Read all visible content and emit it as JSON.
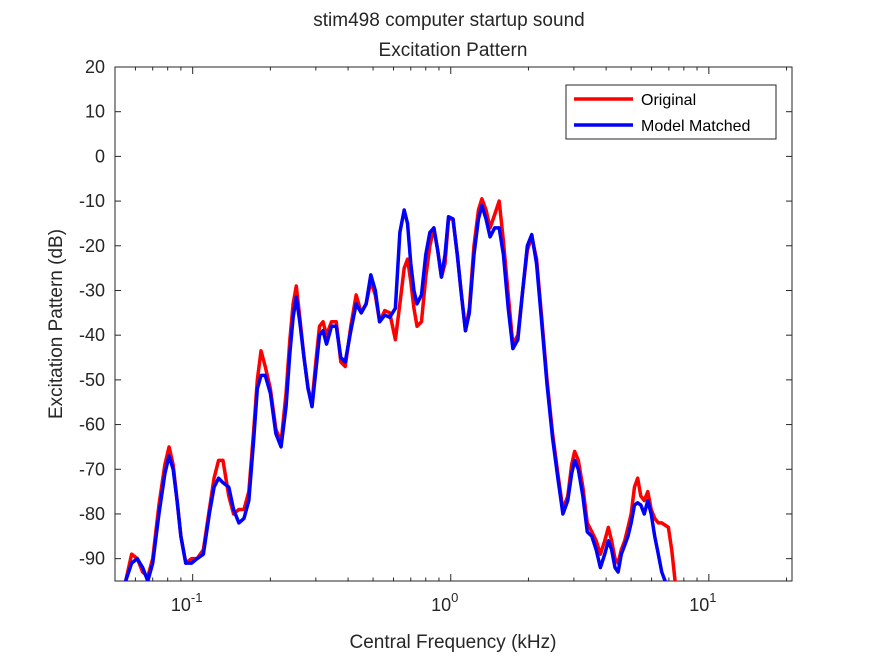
{
  "chart_data": {
    "type": "line",
    "title": "stim498 computer startup sound",
    "subtitle": "Excitation Pattern",
    "xlabel": "Central Frequency (kHz)",
    "ylabel": "Excitation Pattern (dB)",
    "xscale": "log",
    "xlim": [
      0.05,
      21
    ],
    "ylim": [
      -95,
      20
    ],
    "x_ticks": [
      {
        "value": 0.1,
        "base": "10",
        "exp": "-1"
      },
      {
        "value": 1,
        "base": "10",
        "exp": "0"
      },
      {
        "value": 10,
        "base": "10",
        "exp": "1"
      }
    ],
    "y_ticks": [
      {
        "value": 20,
        "label": "20"
      },
      {
        "value": 10,
        "label": "10"
      },
      {
        "value": 0,
        "label": "0"
      },
      {
        "value": -10,
        "label": "-10"
      },
      {
        "value": -20,
        "label": "-20"
      },
      {
        "value": -30,
        "label": "-30"
      },
      {
        "value": -40,
        "label": "-40"
      },
      {
        "value": -50,
        "label": "-50"
      },
      {
        "value": -60,
        "label": "-60"
      },
      {
        "value": -70,
        "label": "-70"
      },
      {
        "value": -80,
        "label": "-80"
      },
      {
        "value": -90,
        "label": "-90"
      }
    ],
    "legend": {
      "location": "top-right"
    },
    "series": [
      {
        "name": "Original",
        "color": "#ff0000",
        "points": [
          [
            0.055,
            -95
          ],
          [
            0.058,
            -89
          ],
          [
            0.061,
            -90
          ],
          [
            0.064,
            -93
          ],
          [
            0.067,
            -94
          ],
          [
            0.07,
            -90
          ],
          [
            0.074,
            -78
          ],
          [
            0.078,
            -69
          ],
          [
            0.081,
            -65
          ],
          [
            0.084,
            -69
          ],
          [
            0.087,
            -77
          ],
          [
            0.09,
            -85
          ],
          [
            0.094,
            -91
          ],
          [
            0.099,
            -90
          ],
          [
            0.104,
            -90
          ],
          [
            0.11,
            -88
          ],
          [
            0.116,
            -79
          ],
          [
            0.121,
            -72
          ],
          [
            0.126,
            -68
          ],
          [
            0.131,
            -68
          ],
          [
            0.138,
            -76
          ],
          [
            0.144,
            -80
          ],
          [
            0.151,
            -79
          ],
          [
            0.158,
            -79
          ],
          [
            0.165,
            -75
          ],
          [
            0.172,
            -62
          ],
          [
            0.178,
            -50
          ],
          [
            0.184,
            -43.5
          ],
          [
            0.191,
            -47
          ],
          [
            0.2,
            -52
          ],
          [
            0.21,
            -61
          ],
          [
            0.22,
            -64
          ],
          [
            0.23,
            -53
          ],
          [
            0.238,
            -41
          ],
          [
            0.245,
            -33
          ],
          [
            0.252,
            -29
          ],
          [
            0.26,
            -36
          ],
          [
            0.27,
            -45
          ],
          [
            0.28,
            -52
          ],
          [
            0.29,
            -55
          ],
          [
            0.3,
            -46
          ],
          [
            0.31,
            -38
          ],
          [
            0.32,
            -37
          ],
          [
            0.33,
            -40
          ],
          [
            0.345,
            -37
          ],
          [
            0.36,
            -37
          ],
          [
            0.375,
            -46
          ],
          [
            0.39,
            -47
          ],
          [
            0.41,
            -38
          ],
          [
            0.43,
            -31
          ],
          [
            0.45,
            -35
          ],
          [
            0.47,
            -33
          ],
          [
            0.49,
            -28
          ],
          [
            0.51,
            -31
          ],
          [
            0.53,
            -37
          ],
          [
            0.555,
            -34.5
          ],
          [
            0.58,
            -35
          ],
          [
            0.61,
            -41
          ],
          [
            0.635,
            -33
          ],
          [
            0.66,
            -25
          ],
          [
            0.68,
            -23
          ],
          [
            0.7,
            -28
          ],
          [
            0.72,
            -34
          ],
          [
            0.74,
            -38
          ],
          [
            0.77,
            -37
          ],
          [
            0.8,
            -27
          ],
          [
            0.83,
            -20
          ],
          [
            0.86,
            -16
          ],
          [
            0.89,
            -21
          ],
          [
            0.92,
            -27
          ],
          [
            0.95,
            -24
          ],
          [
            0.98,
            -14
          ],
          [
            1.02,
            -14
          ],
          [
            1.06,
            -22
          ],
          [
            1.1,
            -31
          ],
          [
            1.14,
            -39
          ],
          [
            1.18,
            -34
          ],
          [
            1.23,
            -20
          ],
          [
            1.28,
            -12
          ],
          [
            1.32,
            -9.5
          ],
          [
            1.37,
            -12
          ],
          [
            1.42,
            -16
          ],
          [
            1.48,
            -13
          ],
          [
            1.54,
            -10
          ],
          [
            1.6,
            -19
          ],
          [
            1.67,
            -31
          ],
          [
            1.74,
            -42
          ],
          [
            1.82,
            -40
          ],
          [
            1.9,
            -30
          ],
          [
            1.98,
            -21
          ],
          [
            2.06,
            -18
          ],
          [
            2.15,
            -23
          ],
          [
            2.25,
            -36
          ],
          [
            2.36,
            -50
          ],
          [
            2.48,
            -62
          ],
          [
            2.6,
            -71
          ],
          [
            2.72,
            -79
          ],
          [
            2.84,
            -76
          ],
          [
            2.94,
            -69
          ],
          [
            3.02,
            -66
          ],
          [
            3.12,
            -68
          ],
          [
            3.25,
            -74
          ],
          [
            3.38,
            -82
          ],
          [
            3.52,
            -84
          ],
          [
            3.66,
            -86
          ],
          [
            3.8,
            -89
          ],
          [
            3.95,
            -86
          ],
          [
            4.08,
            -83
          ],
          [
            4.2,
            -86
          ],
          [
            4.33,
            -90
          ],
          [
            4.45,
            -91
          ],
          [
            4.58,
            -88
          ],
          [
            4.72,
            -86
          ],
          [
            4.86,
            -83
          ],
          [
            5.0,
            -80
          ],
          [
            5.15,
            -74
          ],
          [
            5.3,
            -72
          ],
          [
            5.45,
            -76
          ],
          [
            5.62,
            -77
          ],
          [
            5.8,
            -75
          ],
          [
            5.98,
            -79
          ],
          [
            6.17,
            -81
          ],
          [
            6.37,
            -82
          ],
          [
            6.57,
            -82
          ],
          [
            6.77,
            -82.5
          ],
          [
            6.97,
            -83
          ],
          [
            7.18,
            -88
          ],
          [
            7.4,
            -95
          ]
        ]
      },
      {
        "name": "Model Matched",
        "color": "#0000ff",
        "points": [
          [
            0.055,
            -95
          ],
          [
            0.058,
            -91
          ],
          [
            0.061,
            -90
          ],
          [
            0.064,
            -92
          ],
          [
            0.067,
            -95
          ],
          [
            0.07,
            -91
          ],
          [
            0.074,
            -80
          ],
          [
            0.078,
            -71
          ],
          [
            0.081,
            -67
          ],
          [
            0.084,
            -70
          ],
          [
            0.087,
            -77
          ],
          [
            0.09,
            -85
          ],
          [
            0.094,
            -91
          ],
          [
            0.099,
            -91
          ],
          [
            0.104,
            -90
          ],
          [
            0.11,
            -89
          ],
          [
            0.116,
            -80
          ],
          [
            0.121,
            -74
          ],
          [
            0.126,
            -72
          ],
          [
            0.131,
            -73
          ],
          [
            0.138,
            -74
          ],
          [
            0.144,
            -79
          ],
          [
            0.151,
            -82
          ],
          [
            0.158,
            -81
          ],
          [
            0.165,
            -77
          ],
          [
            0.172,
            -64
          ],
          [
            0.178,
            -52
          ],
          [
            0.184,
            -49
          ],
          [
            0.191,
            -49
          ],
          [
            0.2,
            -53
          ],
          [
            0.21,
            -62
          ],
          [
            0.22,
            -65
          ],
          [
            0.23,
            -56
          ],
          [
            0.238,
            -44
          ],
          [
            0.245,
            -36
          ],
          [
            0.252,
            -31.5
          ],
          [
            0.26,
            -37
          ],
          [
            0.27,
            -45
          ],
          [
            0.28,
            -52
          ],
          [
            0.29,
            -56
          ],
          [
            0.3,
            -48
          ],
          [
            0.31,
            -40
          ],
          [
            0.32,
            -39
          ],
          [
            0.33,
            -42
          ],
          [
            0.345,
            -38
          ],
          [
            0.36,
            -38
          ],
          [
            0.375,
            -45
          ],
          [
            0.39,
            -46
          ],
          [
            0.41,
            -39
          ],
          [
            0.43,
            -33
          ],
          [
            0.45,
            -35
          ],
          [
            0.47,
            -33
          ],
          [
            0.49,
            -26.5
          ],
          [
            0.51,
            -30
          ],
          [
            0.53,
            -37
          ],
          [
            0.555,
            -35.5
          ],
          [
            0.58,
            -36
          ],
          [
            0.61,
            -34
          ],
          [
            0.635,
            -17
          ],
          [
            0.66,
            -12
          ],
          [
            0.68,
            -15
          ],
          [
            0.7,
            -24
          ],
          [
            0.72,
            -30
          ],
          [
            0.74,
            -33
          ],
          [
            0.77,
            -31
          ],
          [
            0.8,
            -22
          ],
          [
            0.83,
            -17
          ],
          [
            0.86,
            -16
          ],
          [
            0.89,
            -21
          ],
          [
            0.92,
            -27
          ],
          [
            0.95,
            -22
          ],
          [
            0.98,
            -13.5
          ],
          [
            1.02,
            -14
          ],
          [
            1.06,
            -22
          ],
          [
            1.1,
            -31
          ],
          [
            1.14,
            -39
          ],
          [
            1.18,
            -35
          ],
          [
            1.23,
            -22
          ],
          [
            1.28,
            -14
          ],
          [
            1.32,
            -11
          ],
          [
            1.37,
            -14
          ],
          [
            1.42,
            -18
          ],
          [
            1.48,
            -16
          ],
          [
            1.54,
            -16
          ],
          [
            1.6,
            -22
          ],
          [
            1.67,
            -34
          ],
          [
            1.74,
            -43
          ],
          [
            1.82,
            -41
          ],
          [
            1.9,
            -30
          ],
          [
            1.98,
            -20
          ],
          [
            2.06,
            -17.5
          ],
          [
            2.15,
            -24
          ],
          [
            2.25,
            -37
          ],
          [
            2.36,
            -51
          ],
          [
            2.48,
            -63
          ],
          [
            2.6,
            -72
          ],
          [
            2.72,
            -80
          ],
          [
            2.84,
            -77
          ],
          [
            2.94,
            -71
          ],
          [
            3.02,
            -68
          ],
          [
            3.12,
            -70
          ],
          [
            3.25,
            -76
          ],
          [
            3.38,
            -84
          ],
          [
            3.52,
            -85
          ],
          [
            3.66,
            -88
          ],
          [
            3.8,
            -92
          ],
          [
            3.95,
            -89
          ],
          [
            4.08,
            -86
          ],
          [
            4.2,
            -88
          ],
          [
            4.33,
            -92
          ],
          [
            4.45,
            -93
          ],
          [
            4.58,
            -89
          ],
          [
            4.72,
            -87
          ],
          [
            4.86,
            -85
          ],
          [
            5.0,
            -82
          ],
          [
            5.15,
            -78
          ],
          [
            5.3,
            -77.5
          ],
          [
            5.45,
            -78
          ],
          [
            5.62,
            -80
          ],
          [
            5.8,
            -77
          ],
          [
            5.98,
            -80
          ],
          [
            6.17,
            -85
          ],
          [
            6.37,
            -89
          ],
          [
            6.57,
            -93
          ],
          [
            6.77,
            -95
          ]
        ]
      }
    ]
  }
}
